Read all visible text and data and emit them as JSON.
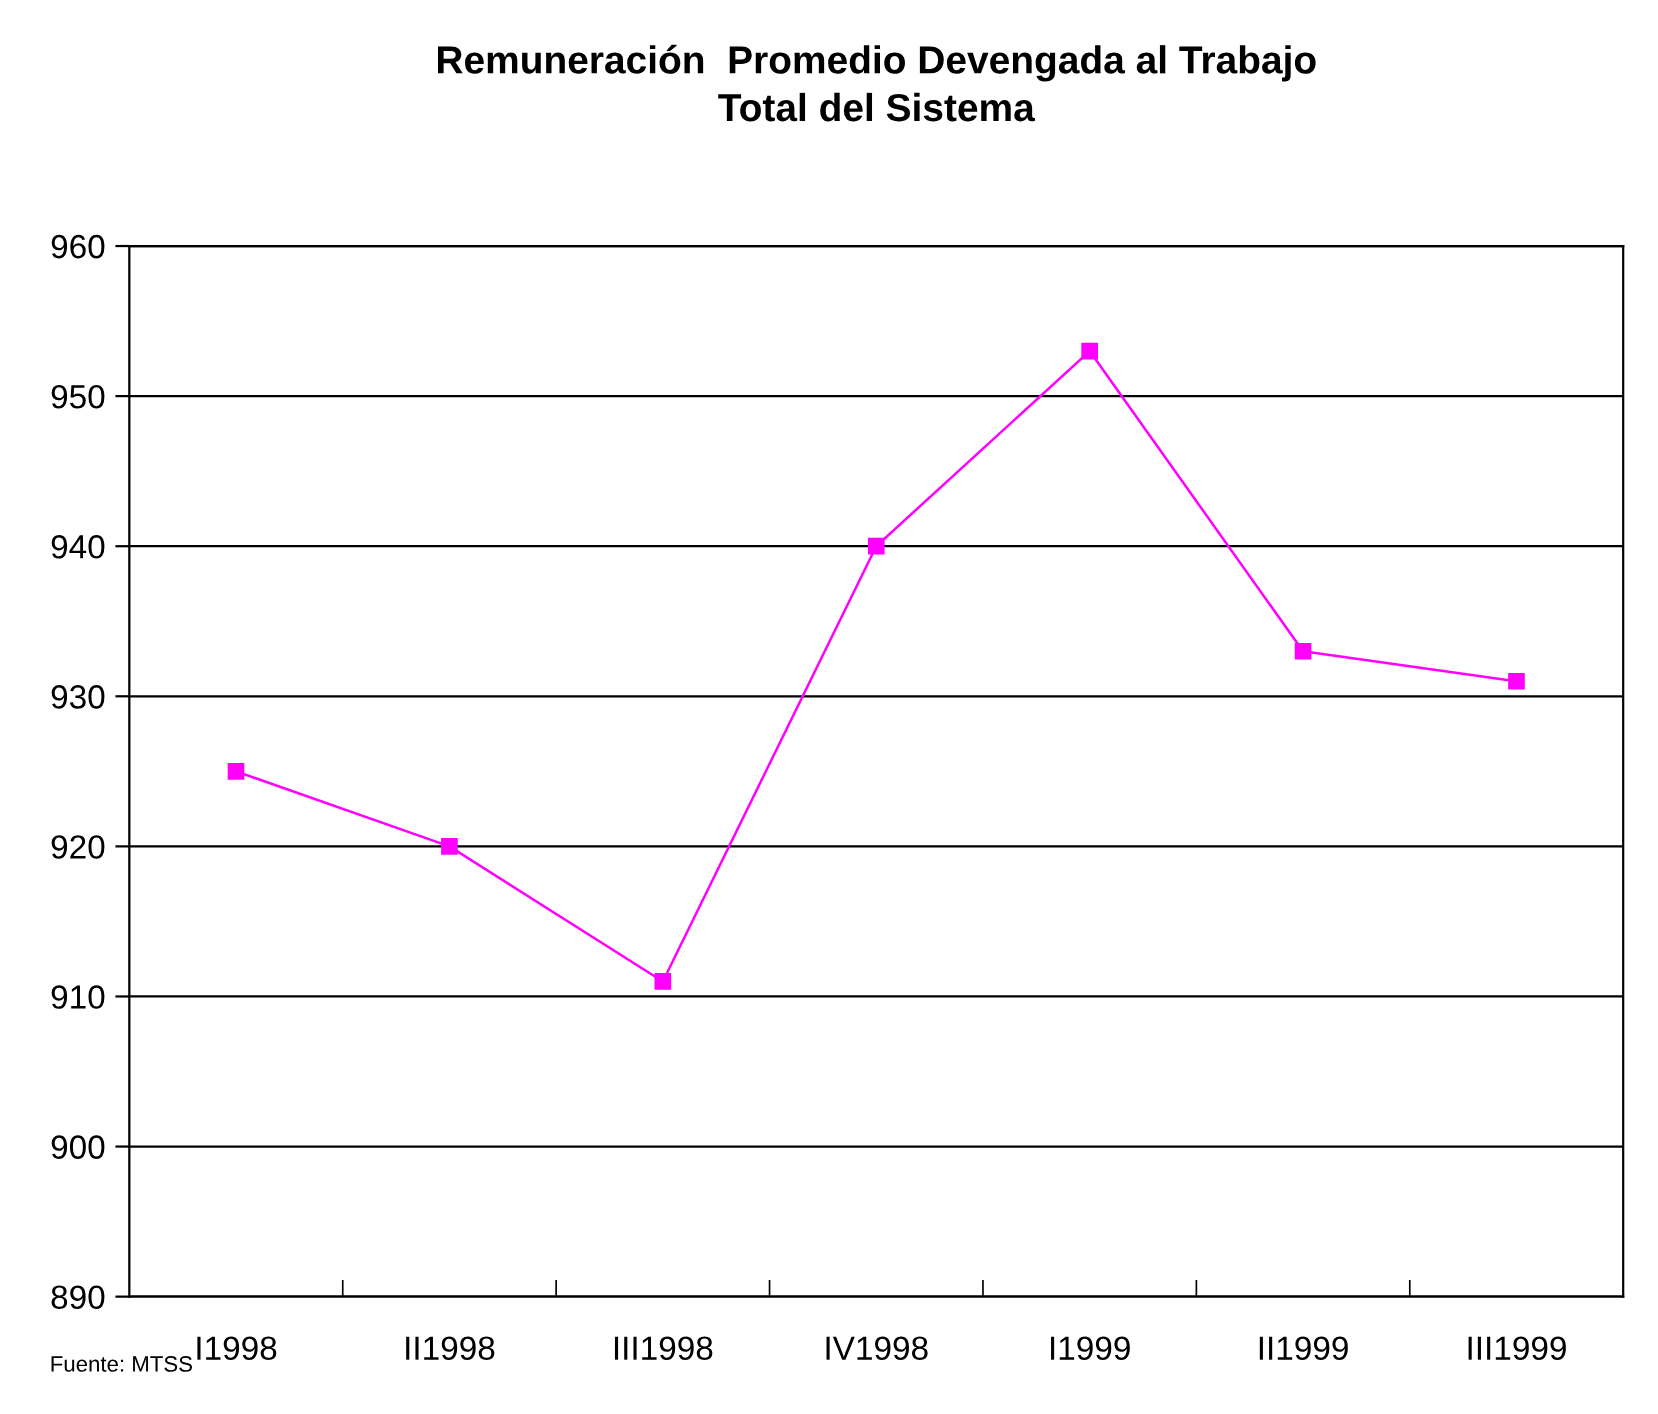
{
  "chart_data": {
    "type": "line",
    "title": "Remuneración  Promedio Devengada al Trabajo\nTotal del Sistema",
    "categories": [
      "I1998",
      "II1998",
      "III1998",
      "IV1998",
      "I1999",
      "II1999",
      "III1999"
    ],
    "series": [
      {
        "color": "#ff00ff",
        "values": [
          925,
          920,
          911,
          940,
          953,
          933,
          931
        ]
      }
    ],
    "ylim": [
      890,
      960
    ],
    "yticks": [
      890,
      900,
      910,
      920,
      930,
      940,
      950,
      960
    ],
    "grid": "y",
    "marker": "square",
    "line_style": "solid",
    "legend": false,
    "annotations": [
      "Fuente: MTSS"
    ]
  }
}
